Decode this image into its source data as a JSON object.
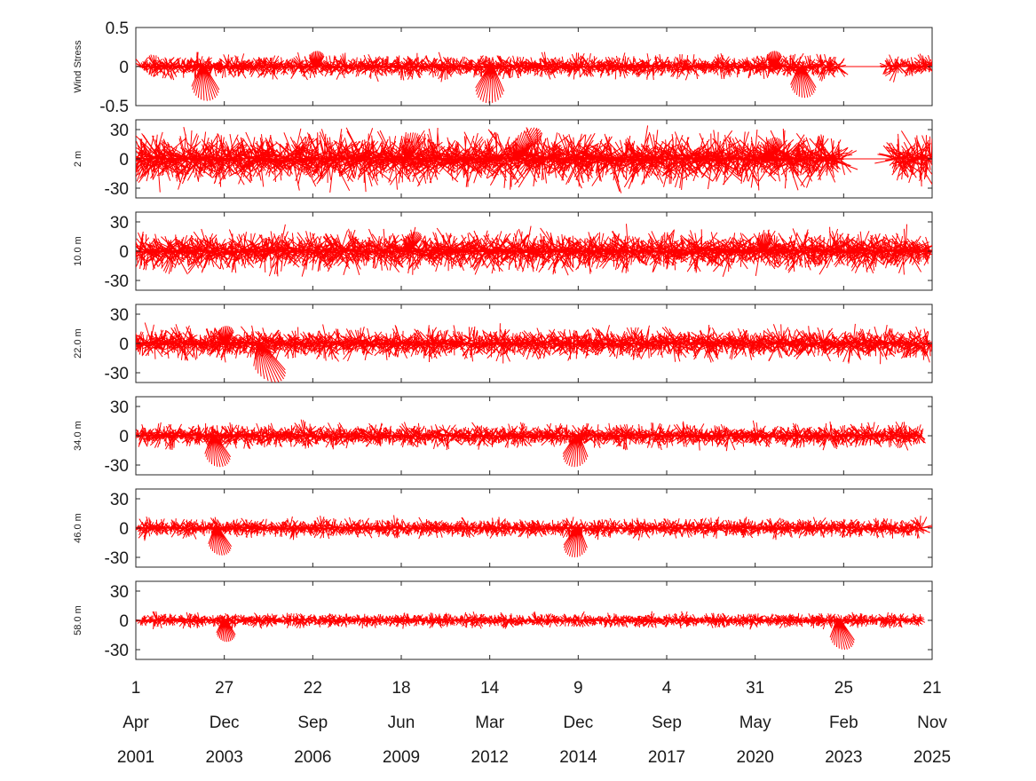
{
  "chart_data": {
    "type": "stick",
    "color": "#ff0000",
    "x_range": [
      "2001-04-01",
      "2025-11-21"
    ],
    "x_ticks": [
      {
        "day": "1",
        "month": "Apr",
        "year": "2001",
        "date": "2001-04-01"
      },
      {
        "day": "27",
        "month": "Dec",
        "year": "2003",
        "date": "2003-12-27"
      },
      {
        "day": "22",
        "month": "Sep",
        "year": "2006",
        "date": "2006-09-22"
      },
      {
        "day": "18",
        "month": "Jun",
        "year": "2009",
        "date": "2009-06-18"
      },
      {
        "day": "14",
        "month": "Mar",
        "year": "2012",
        "date": "2012-03-14"
      },
      {
        "day": "9",
        "month": "Dec",
        "year": "2014",
        "date": "2014-12-09"
      },
      {
        "day": "4",
        "month": "Sep",
        "year": "2017",
        "date": "2017-09-04"
      },
      {
        "day": "31",
        "month": "May",
        "year": "2020",
        "date": "2020-05-31"
      },
      {
        "day": "25",
        "month": "Feb",
        "year": "2023",
        "date": "2023-02-25"
      },
      {
        "day": "21",
        "month": "Nov",
        "year": "2025",
        "date": "2025-11-21"
      }
    ],
    "panels": [
      {
        "ylabel": "Wind Stress",
        "ylim": [
          -0.5,
          0.5
        ],
        "yticks": [
          -0.5,
          0,
          0.5
        ],
        "tick_labels": [
          "-0.5",
          "0",
          "0.5"
        ],
        "amplitude": 0.12,
        "data_start": "2001-06-01",
        "data_end": "2025-11-21",
        "gaps": [
          [
            "2023-01-10",
            "2024-06-15"
          ],
          [
            "2024-12-20",
            "2025-01-25"
          ]
        ],
        "bursts": [
          {
            "date": "2003-05-01",
            "u": 0.12,
            "v": -0.44
          },
          {
            "date": "2006-11-01",
            "u": 0.05,
            "v": 0.2
          },
          {
            "date": "2012-04-01",
            "u": -0.06,
            "v": -0.47
          },
          {
            "date": "2021-11-01",
            "u": 0.12,
            "v": -0.4
          },
          {
            "date": "2021-01-01",
            "u": 0.02,
            "v": 0.2
          }
        ]
      },
      {
        "ylabel": "2 m",
        "ylim": [
          -40,
          40
        ],
        "yticks": [
          -30,
          0,
          30
        ],
        "tick_labels": [
          "-30",
          "0",
          "30"
        ],
        "amplitude": 22,
        "data_start": "2001-04-01",
        "data_end": "2025-11-21",
        "gaps": [
          [
            "2023-01-25",
            "2024-09-15"
          ]
        ],
        "bursts": [
          {
            "date": "2013-01-01",
            "u": 0.6,
            "v": 32
          },
          {
            "date": "2009-09-01",
            "u": 0.2,
            "v": 27
          },
          {
            "date": "2020-11-01",
            "u": 0.3,
            "v": 22
          }
        ]
      },
      {
        "ylabel": "10.0 m",
        "ylim": [
          -40,
          40
        ],
        "yticks": [
          -30,
          0,
          30
        ],
        "tick_labels": [
          "-30",
          "0",
          "30"
        ],
        "amplitude": 17,
        "data_start": "2001-04-01",
        "data_end": "2025-11-21",
        "gaps": [],
        "bursts": [
          {
            "date": "2009-09-01",
            "u": 0.4,
            "v": 20
          },
          {
            "date": "2020-09-01",
            "u": 0.1,
            "v": 18
          }
        ]
      },
      {
        "ylabel": "22.0 m",
        "ylim": [
          -40,
          40
        ],
        "yticks": [
          -30,
          0,
          30
        ],
        "tick_labels": [
          "-30",
          "0",
          "30"
        ],
        "amplitude": 13,
        "data_start": "2001-04-01",
        "data_end": "2025-11-21",
        "gaps": [],
        "bursts": [
          {
            "date": "2005-02-01",
            "u": 0.4,
            "v": -40
          },
          {
            "date": "2004-01-01",
            "u": 0.1,
            "v": 18
          }
        ]
      },
      {
        "ylabel": "34.0 m",
        "ylim": [
          -40,
          40
        ],
        "yticks": [
          -30,
          0,
          30
        ],
        "tick_labels": [
          "-30",
          "0",
          "30"
        ],
        "amplitude": 10,
        "data_start": "2001-05-01",
        "data_end": "2025-08-01",
        "gaps": [],
        "bursts": [
          {
            "date": "2003-09-01",
            "u": 0.2,
            "v": -32
          },
          {
            "date": "2014-12-01",
            "u": -0.1,
            "v": -32
          }
        ]
      },
      {
        "ylabel": "46.0 m",
        "ylim": [
          -40,
          40
        ],
        "yticks": [
          -30,
          0,
          30
        ],
        "tick_labels": [
          "-30",
          "0",
          "30"
        ],
        "amplitude": 8,
        "data_start": "2001-05-01",
        "data_end": "2025-08-01",
        "gaps": [],
        "bursts": [
          {
            "date": "2003-10-01",
            "u": 0.2,
            "v": -28
          },
          {
            "date": "2014-12-01",
            "u": -0.1,
            "v": -30
          }
        ]
      },
      {
        "ylabel": "58.0 m",
        "ylim": [
          -40,
          40
        ],
        "yticks": [
          -30,
          0,
          30
        ],
        "tick_labels": [
          "-30",
          "0",
          "30"
        ],
        "amplitude": 6,
        "data_start": "2001-06-01",
        "data_end": "2025-08-01",
        "gaps": [],
        "bursts": [
          {
            "date": "2023-01-01",
            "u": 0.2,
            "v": -30
          },
          {
            "date": "2004-01-01",
            "u": 0.1,
            "v": -22
          }
        ]
      }
    ]
  }
}
